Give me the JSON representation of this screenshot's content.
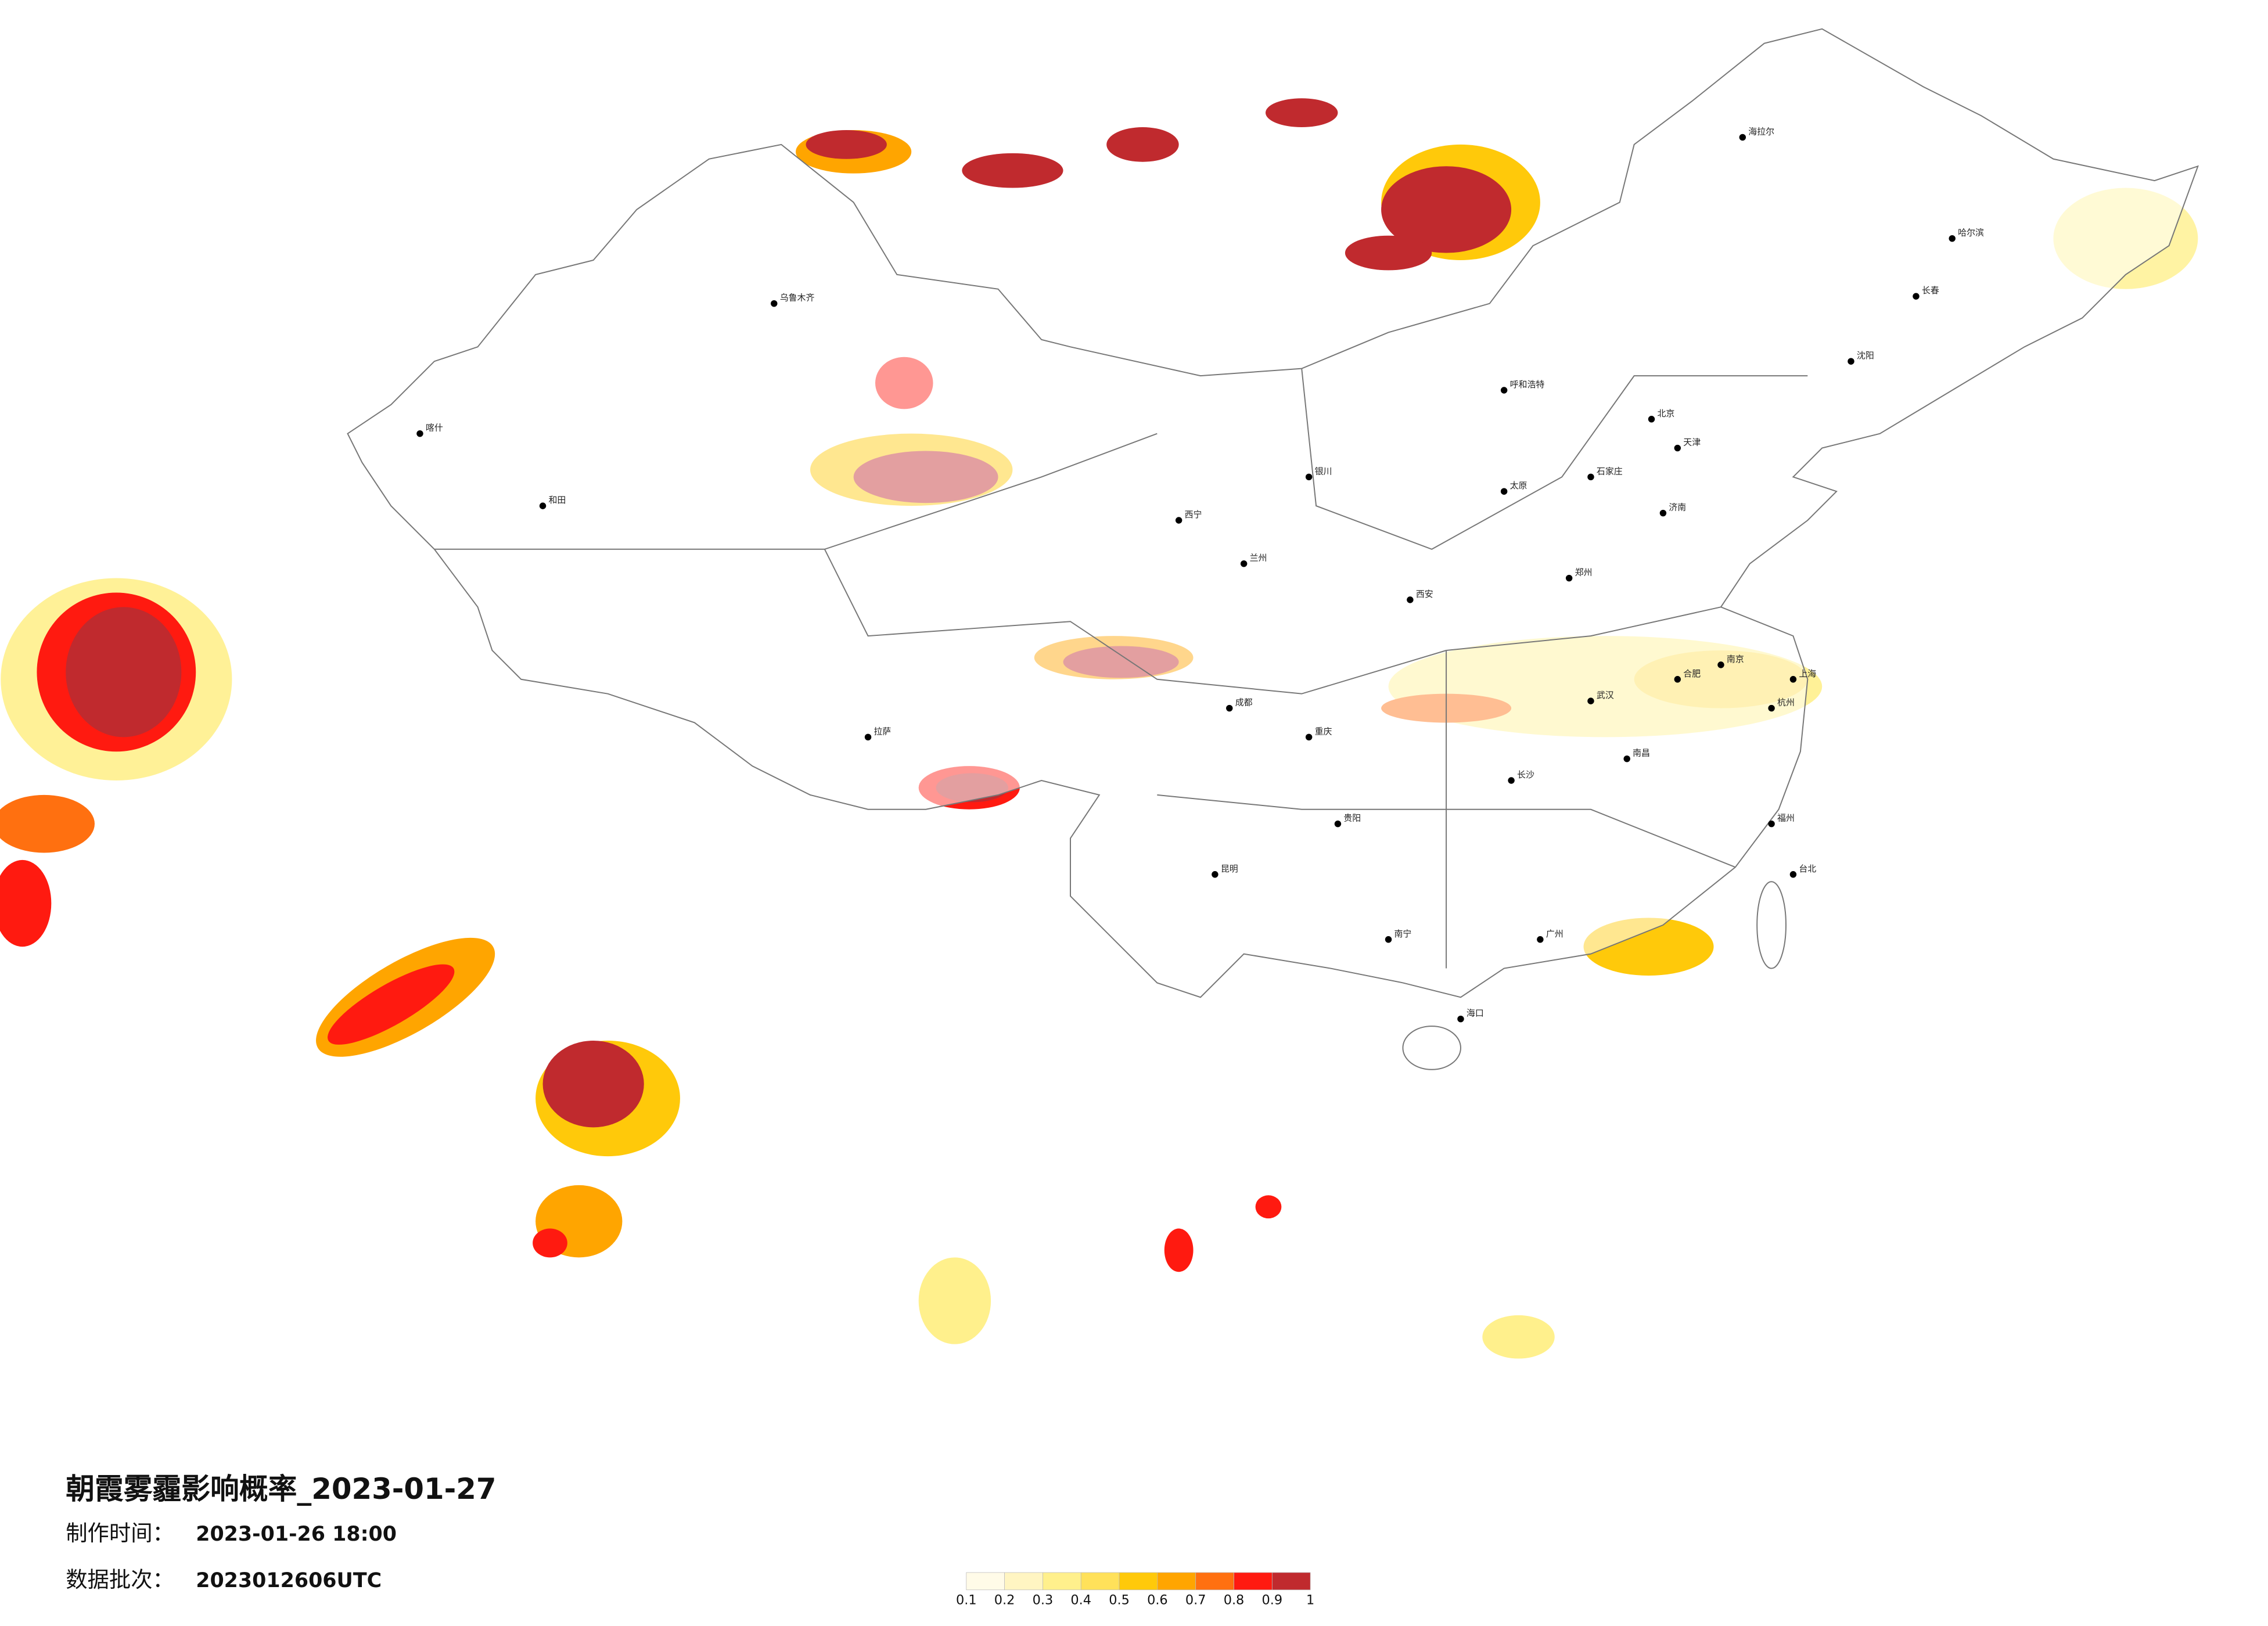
{
  "map": {
    "title": "朝霞雾霾影响概率_2023-01-27",
    "info": [
      {
        "label": "制作时间：",
        "value": "2023-01-26 18:00"
      },
      {
        "label": "数据批次：",
        "value": "2023012606UTC"
      }
    ],
    "legend": {
      "colors": [
        "#fffbe8",
        "#fff5c2",
        "#fff08c",
        "#ffe15a",
        "#ffc90a",
        "#ffa500",
        "#ff7010",
        "#ff1a10",
        "#c02a2e"
      ],
      "ticks": [
        0.1,
        0.2,
        0.3,
        0.4,
        0.5,
        0.6,
        0.7,
        0.8,
        0.9,
        1
      ]
    },
    "cities": [
      "北京",
      "天津",
      "上海",
      "广州",
      "重庆",
      "成都",
      "武汉",
      "西安",
      "兰州",
      "乌鲁木齐",
      "拉萨",
      "哈尔滨",
      "长春",
      "沈阳",
      "呼和浩特",
      "银川",
      "西宁",
      "郑州",
      "济南",
      "南京",
      "杭州",
      "合肥",
      "南昌",
      "长沙",
      "福州",
      "贵阳",
      "昆明",
      "南宁",
      "海口",
      "台北",
      "太原",
      "石家庄",
      "海拉尔",
      "喀什",
      "和田"
    ]
  }
}
